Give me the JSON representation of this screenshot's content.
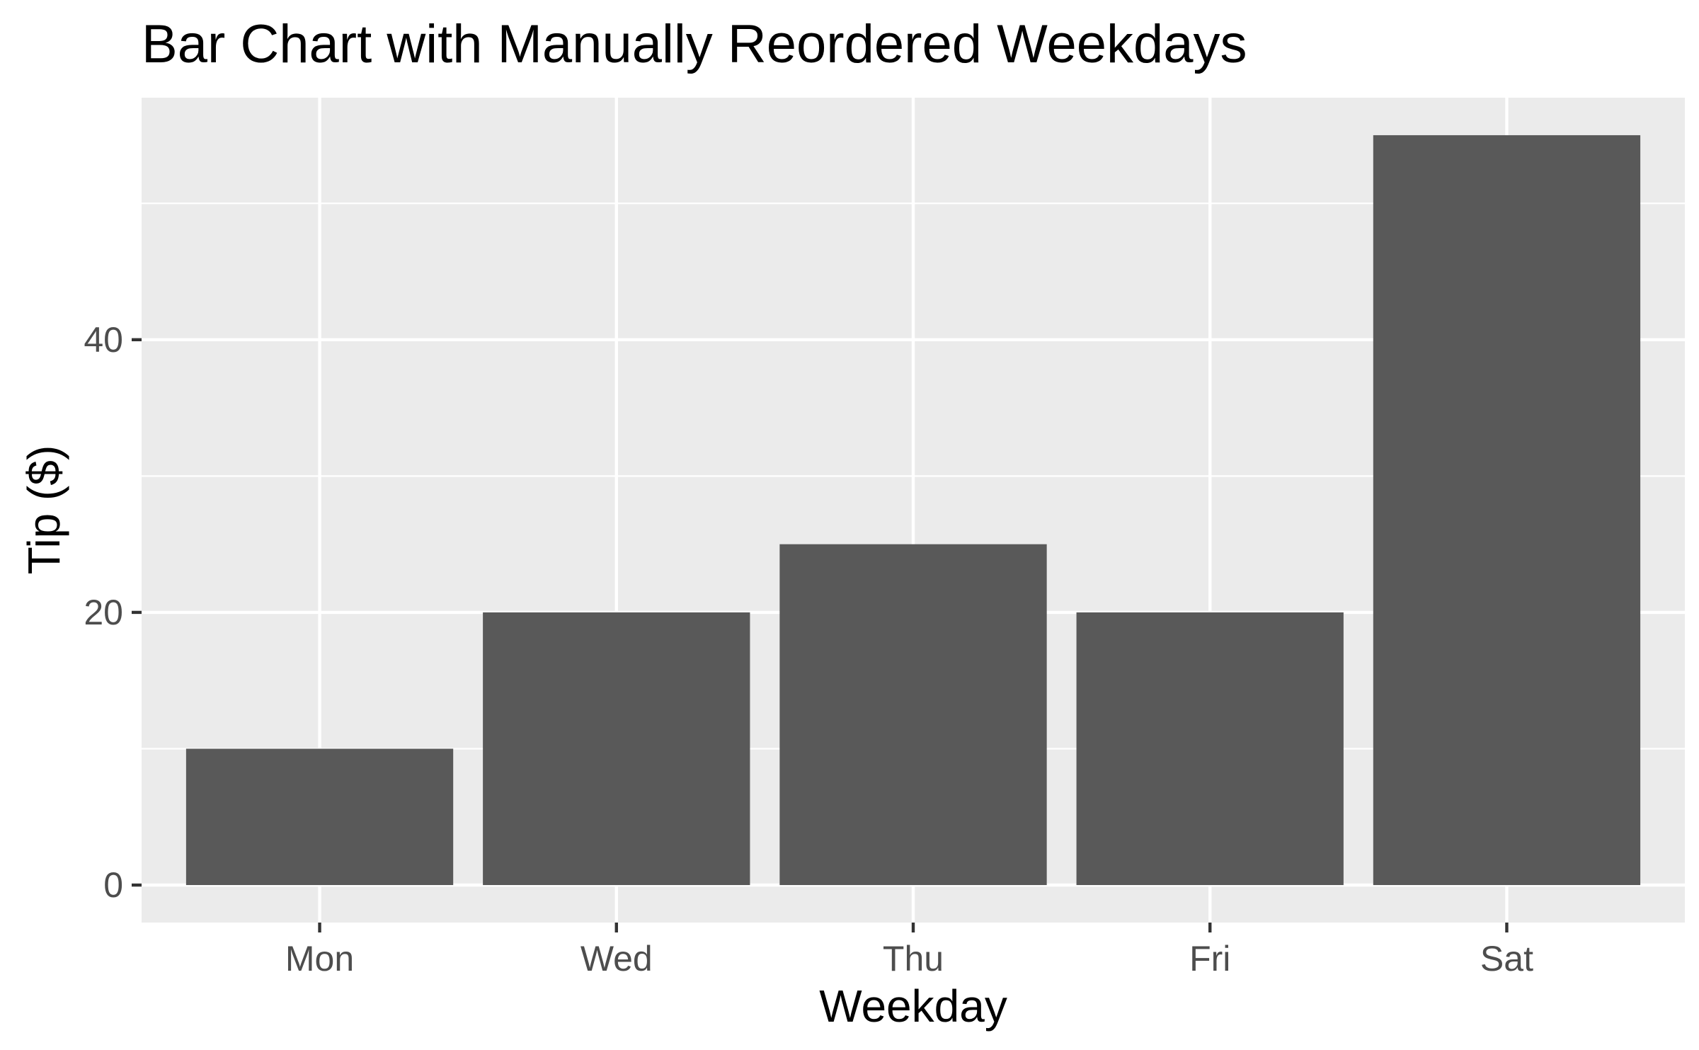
{
  "chart_data": {
    "type": "bar",
    "title": "Bar Chart with Manually Reordered Weekdays",
    "xlabel": "Weekday",
    "ylabel": "Tip ($)",
    "categories": [
      "Mon",
      "Wed",
      "Thu",
      "Fri",
      "Sat"
    ],
    "values": [
      10,
      20,
      25,
      20,
      55
    ],
    "yticks": [
      0,
      20,
      40
    ],
    "ylim": [
      -2.75,
      57.75
    ],
    "grid": true,
    "legend": "none",
    "colors": {
      "bar": "#595959",
      "panel": "#ebebeb",
      "grid": "#ffffff",
      "tick_text": "#4d4d4d",
      "tick_mark": "#333333"
    }
  }
}
